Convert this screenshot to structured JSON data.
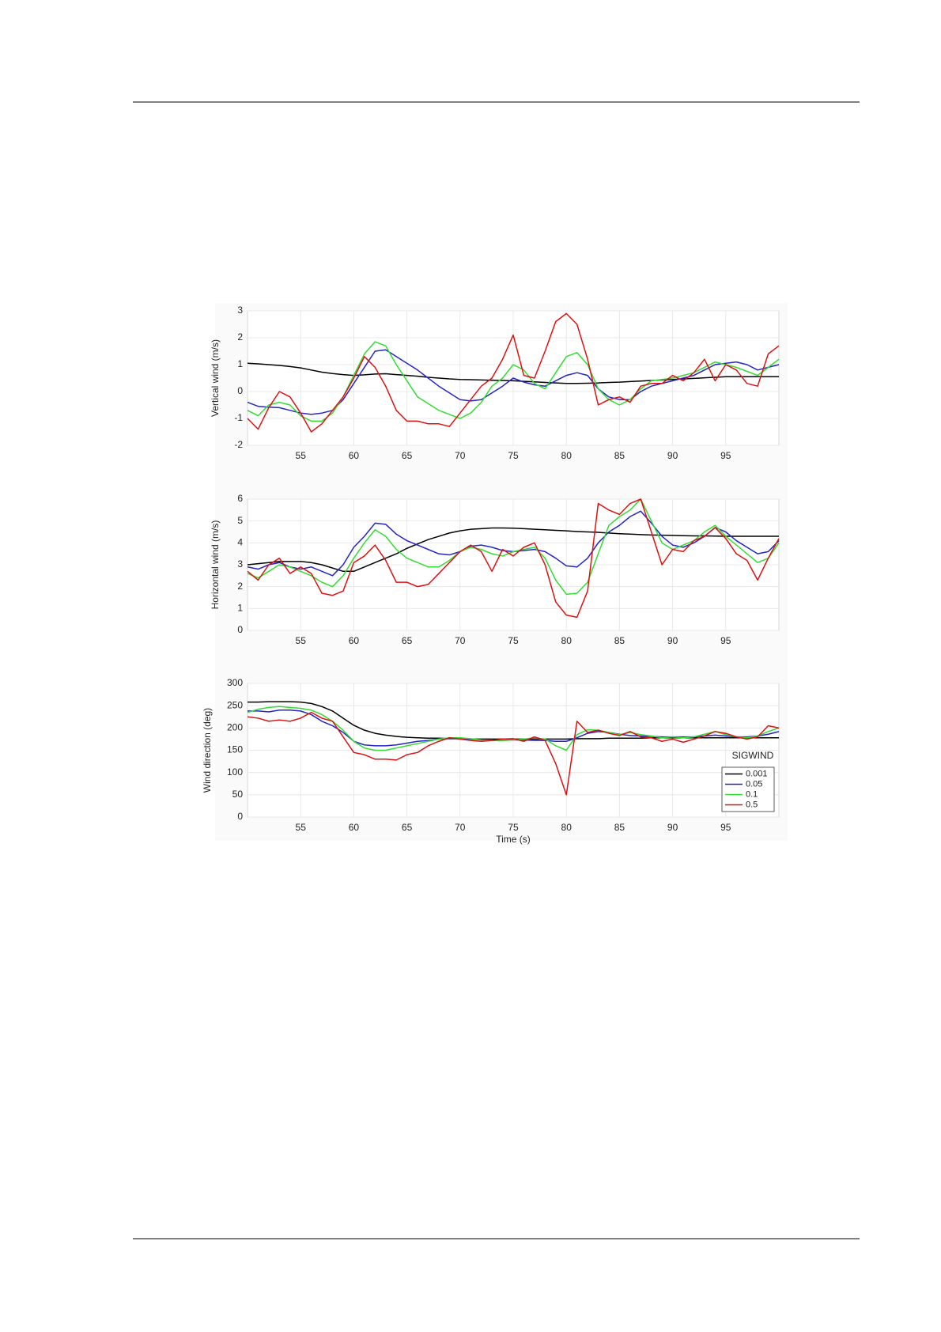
{
  "chart_data": [
    {
      "type": "line",
      "ylabel": "Vertical wind (m/s)",
      "x": [
        50,
        51,
        52,
        53,
        54,
        55,
        56,
        57,
        58,
        59,
        60,
        61,
        62,
        63,
        64,
        65,
        66,
        67,
        68,
        69,
        70,
        71,
        72,
        73,
        74,
        75,
        76,
        77,
        78,
        79,
        80,
        81,
        82,
        83,
        84,
        85,
        86,
        87,
        88,
        89,
        90,
        91,
        92,
        93,
        94,
        95,
        96,
        97,
        98,
        99,
        100
      ],
      "xlim": [
        50,
        100
      ],
      "xticks": [
        55,
        60,
        65,
        70,
        75,
        80,
        85,
        90,
        95
      ],
      "ylim": [
        -2,
        3
      ],
      "yticks": [
        -2,
        -1,
        0,
        1,
        2,
        3
      ],
      "grid": true,
      "series": [
        {
          "color": "#000000",
          "values": [
            1.05,
            1.03,
            1.0,
            0.97,
            0.93,
            0.88,
            0.8,
            0.72,
            0.67,
            0.63,
            0.6,
            0.62,
            0.65,
            0.66,
            0.63,
            0.6,
            0.57,
            0.53,
            0.5,
            0.47,
            0.45,
            0.44,
            0.43,
            0.42,
            0.41,
            0.4,
            0.38,
            0.36,
            0.34,
            0.32,
            0.3,
            0.3,
            0.31,
            0.32,
            0.34,
            0.35,
            0.37,
            0.39,
            0.41,
            0.43,
            0.45,
            0.47,
            0.49,
            0.51,
            0.53,
            0.55,
            0.55,
            0.55,
            0.55,
            0.55,
            0.55
          ]
        },
        {
          "color": "#2424c8",
          "values": [
            -0.4,
            -0.55,
            -0.58,
            -0.6,
            -0.7,
            -0.8,
            -0.85,
            -0.8,
            -0.7,
            -0.3,
            0.3,
            0.9,
            1.5,
            1.55,
            1.3,
            1.05,
            0.8,
            0.5,
            0.2,
            -0.05,
            -0.3,
            -0.35,
            -0.3,
            -0.05,
            0.2,
            0.5,
            0.35,
            0.25,
            0.2,
            0.4,
            0.6,
            0.7,
            0.6,
            0.1,
            -0.2,
            -0.3,
            -0.3,
            0.0,
            0.2,
            0.3,
            0.4,
            0.5,
            0.6,
            0.8,
            1.0,
            1.05,
            1.1,
            1.0,
            0.8,
            0.9,
            1.0
          ]
        },
        {
          "color": "#33dd33",
          "values": [
            -0.7,
            -0.9,
            -0.5,
            -0.4,
            -0.5,
            -0.9,
            -1.1,
            -1.1,
            -0.8,
            -0.2,
            0.6,
            1.4,
            1.85,
            1.7,
            1.0,
            0.4,
            -0.2,
            -0.45,
            -0.7,
            -0.85,
            -1.0,
            -0.8,
            -0.4,
            0.2,
            0.5,
            1.0,
            0.8,
            0.3,
            0.1,
            0.7,
            1.3,
            1.45,
            1.0,
            0.1,
            -0.3,
            -0.5,
            -0.3,
            0.1,
            0.4,
            0.45,
            0.5,
            0.6,
            0.7,
            0.9,
            1.1,
            1.0,
            0.9,
            0.75,
            0.6,
            0.9,
            1.2
          ]
        },
        {
          "color": "#dd1111",
          "values": [
            -1.0,
            -1.4,
            -0.6,
            0.0,
            -0.2,
            -0.8,
            -1.5,
            -1.2,
            -0.7,
            -0.2,
            0.5,
            1.3,
            0.9,
            0.2,
            -0.7,
            -1.1,
            -1.1,
            -1.2,
            -1.2,
            -1.3,
            -0.8,
            -0.3,
            0.2,
            0.5,
            1.2,
            2.1,
            0.6,
            0.5,
            1.5,
            2.6,
            2.9,
            2.5,
            1.2,
            -0.5,
            -0.3,
            -0.2,
            -0.4,
            0.2,
            0.3,
            0.3,
            0.6,
            0.4,
            0.7,
            1.2,
            0.4,
            1.0,
            0.8,
            0.3,
            0.2,
            1.4,
            1.7
          ]
        }
      ]
    },
    {
      "type": "line",
      "ylabel": "Horizontal wind (m/s)",
      "x": [
        50,
        51,
        52,
        53,
        54,
        55,
        56,
        57,
        58,
        59,
        60,
        61,
        62,
        63,
        64,
        65,
        66,
        67,
        68,
        69,
        70,
        71,
        72,
        73,
        74,
        75,
        76,
        77,
        78,
        79,
        80,
        81,
        82,
        83,
        84,
        85,
        86,
        87,
        88,
        89,
        90,
        91,
        92,
        93,
        94,
        95,
        96,
        97,
        98,
        99,
        100
      ],
      "xlim": [
        50,
        100
      ],
      "xticks": [
        55,
        60,
        65,
        70,
        75,
        80,
        85,
        90,
        95
      ],
      "ylim": [
        0,
        6
      ],
      "yticks": [
        0,
        1,
        2,
        3,
        4,
        5,
        6
      ],
      "grid": true,
      "series": [
        {
          "color": "#000000",
          "values": [
            3.0,
            3.05,
            3.1,
            3.15,
            3.15,
            3.15,
            3.1,
            3.0,
            2.85,
            2.7,
            2.7,
            2.9,
            3.1,
            3.3,
            3.5,
            3.75,
            3.95,
            4.15,
            4.3,
            4.45,
            4.55,
            4.62,
            4.65,
            4.68,
            4.68,
            4.67,
            4.65,
            4.62,
            4.6,
            4.57,
            4.55,
            4.52,
            4.5,
            4.48,
            4.45,
            4.42,
            4.4,
            4.38,
            4.36,
            4.35,
            4.34,
            4.33,
            4.32,
            4.32,
            4.31,
            4.3,
            4.3,
            4.3,
            4.3,
            4.3,
            4.3
          ]
        },
        {
          "color": "#2424c8",
          "values": [
            2.9,
            2.8,
            3.0,
            3.1,
            2.9,
            2.8,
            2.9,
            2.7,
            2.5,
            3.0,
            3.8,
            4.3,
            4.9,
            4.85,
            4.4,
            4.1,
            3.9,
            3.7,
            3.5,
            3.45,
            3.6,
            3.85,
            3.9,
            3.8,
            3.65,
            3.6,
            3.65,
            3.7,
            3.6,
            3.3,
            2.95,
            2.9,
            3.3,
            4.0,
            4.5,
            4.8,
            5.2,
            5.45,
            4.9,
            4.3,
            3.9,
            3.8,
            4.0,
            4.3,
            4.7,
            4.5,
            4.1,
            3.8,
            3.5,
            3.6,
            4.1
          ]
        },
        {
          "color": "#33dd33",
          "values": [
            2.6,
            2.4,
            2.7,
            3.0,
            2.9,
            2.7,
            2.5,
            2.2,
            2.0,
            2.5,
            3.3,
            4.0,
            4.6,
            4.3,
            3.7,
            3.3,
            3.1,
            2.9,
            2.9,
            3.2,
            3.6,
            3.8,
            3.7,
            3.5,
            3.4,
            3.6,
            3.7,
            3.8,
            3.3,
            2.3,
            1.65,
            1.7,
            2.2,
            3.5,
            4.8,
            5.2,
            5.5,
            6.0,
            5.0,
            4.0,
            3.7,
            3.9,
            4.1,
            4.5,
            4.8,
            4.3,
            3.9,
            3.5,
            3.1,
            3.3,
            4.0
          ]
        },
        {
          "color": "#dd1111",
          "values": [
            2.7,
            2.3,
            3.0,
            3.3,
            2.6,
            2.9,
            2.6,
            1.7,
            1.6,
            1.8,
            3.1,
            3.4,
            3.9,
            3.2,
            2.2,
            2.2,
            2.0,
            2.1,
            2.6,
            3.1,
            3.6,
            3.9,
            3.6,
            2.7,
            3.7,
            3.4,
            3.8,
            4.0,
            3.0,
            1.3,
            0.7,
            0.6,
            1.8,
            5.8,
            5.5,
            5.3,
            5.8,
            6.0,
            4.5,
            3.0,
            3.7,
            3.6,
            4.1,
            4.3,
            4.7,
            4.2,
            3.5,
            3.2,
            2.3,
            3.3,
            4.2
          ]
        }
      ]
    },
    {
      "type": "line",
      "ylabel": "Wind direction (deg)",
      "xlabel": "Time (s)",
      "x": [
        50,
        51,
        52,
        53,
        54,
        55,
        56,
        57,
        58,
        59,
        60,
        61,
        62,
        63,
        64,
        65,
        66,
        67,
        68,
        69,
        70,
        71,
        72,
        73,
        74,
        75,
        76,
        77,
        78,
        79,
        80,
        81,
        82,
        83,
        84,
        85,
        86,
        87,
        88,
        89,
        90,
        91,
        92,
        93,
        94,
        95,
        96,
        97,
        98,
        99,
        100
      ],
      "xlim": [
        50,
        100
      ],
      "xticks": [
        55,
        60,
        65,
        70,
        75,
        80,
        85,
        90,
        95
      ],
      "ylim": [
        0,
        300
      ],
      "yticks": [
        0,
        50,
        100,
        150,
        200,
        250,
        300
      ],
      "grid": true,
      "legend": "lower right",
      "legend_title": "SIGWIND",
      "series": [
        {
          "name": "0.001",
          "color": "#000000",
          "values": [
            258,
            258,
            259,
            259,
            259,
            258,
            255,
            248,
            238,
            222,
            206,
            195,
            188,
            184,
            181,
            179,
            178,
            177,
            177,
            176,
            176,
            175,
            175,
            175,
            175,
            175,
            175,
            175,
            175,
            175,
            175,
            176,
            176,
            176,
            177,
            177,
            177,
            177,
            178,
            178,
            178,
            178,
            178,
            178,
            178,
            178,
            178,
            178,
            178,
            178,
            178
          ]
        },
        {
          "name": "0.05",
          "color": "#2424c8",
          "values": [
            238,
            238,
            236,
            240,
            240,
            238,
            230,
            215,
            205,
            190,
            170,
            162,
            160,
            160,
            162,
            166,
            170,
            172,
            175,
            176,
            176,
            175,
            173,
            172,
            172,
            173,
            173,
            172,
            172,
            170,
            170,
            178,
            188,
            192,
            190,
            186,
            183,
            182,
            181,
            180,
            180,
            180,
            180,
            182,
            184,
            182,
            180,
            180,
            182,
            186,
            192
          ]
        },
        {
          "name": "0.1",
          "color": "#33dd33",
          "values": [
            235,
            242,
            246,
            248,
            246,
            244,
            240,
            230,
            215,
            195,
            170,
            155,
            150,
            150,
            155,
            160,
            165,
            170,
            175,
            178,
            178,
            176,
            173,
            172,
            172,
            173,
            175,
            178,
            175,
            160,
            150,
            185,
            196,
            195,
            190,
            185,
            190,
            185,
            182,
            178,
            180,
            178,
            180,
            186,
            192,
            185,
            180,
            178,
            182,
            192,
            200
          ]
        },
        {
          "name": "0.5",
          "color": "#dd1111",
          "values": [
            225,
            222,
            215,
            218,
            215,
            222,
            235,
            222,
            215,
            180,
            145,
            140,
            130,
            130,
            128,
            140,
            145,
            160,
            170,
            178,
            175,
            172,
            170,
            172,
            175,
            176,
            170,
            180,
            172,
            120,
            50,
            215,
            190,
            195,
            188,
            183,
            192,
            180,
            178,
            170,
            175,
            168,
            175,
            182,
            192,
            188,
            180,
            175,
            180,
            205,
            200
          ]
        }
      ]
    }
  ]
}
